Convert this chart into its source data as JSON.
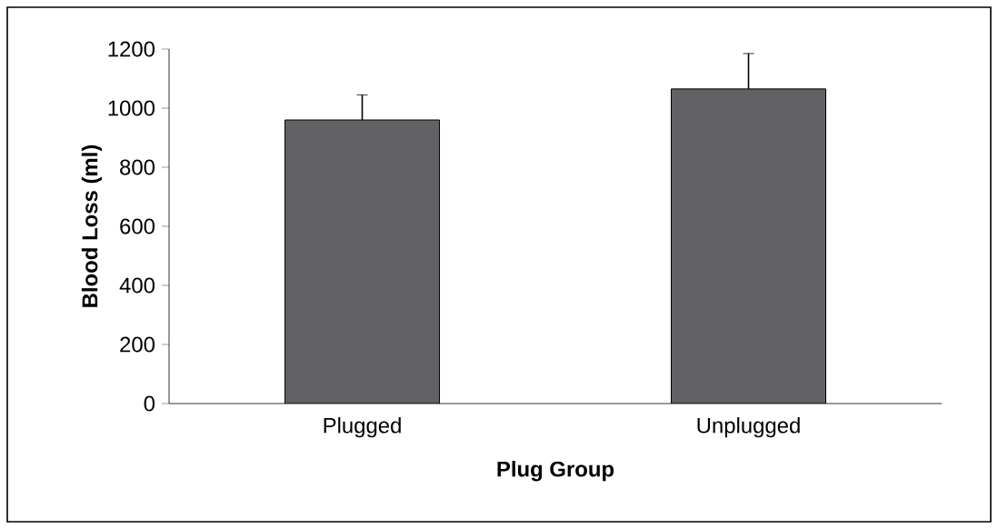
{
  "chart_data": {
    "type": "bar",
    "xlabel": "Plug Group",
    "ylabel": "Blood Loss (ml)",
    "categories": [
      "Plugged",
      "Unplugged"
    ],
    "values": [
      960,
      1065
    ],
    "errors": [
      85,
      120
    ],
    "color": "#616166",
    "ylim": [
      0,
      1200
    ],
    "yticks": [
      0,
      200,
      400,
      600,
      800,
      1000,
      1200
    ],
    "grid": false
  }
}
